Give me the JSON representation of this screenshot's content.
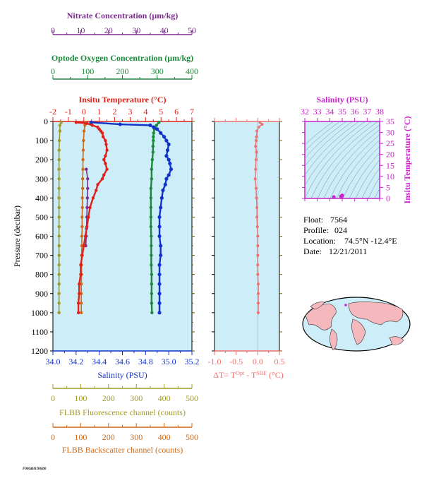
{
  "colors": {
    "nitrate": "#7b2d8e",
    "oxygen": "#1a8a3a",
    "temperature": "#e0201a",
    "salinity": "#1133cc",
    "fluorescence": "#a09a2a",
    "backscatter": "#d06a18",
    "delta": "#f07070",
    "ts_axis": "#cc22cc",
    "panel_bg": "#cdeef8",
    "land": "#f5b8bc",
    "frame": "#7a5a00"
  },
  "float_info": {
    "float_label": "Float:",
    "float_value": "7564",
    "profile_label": "Profile:",
    "profile_value": "024",
    "location_label": "Location:",
    "location_value": "74.5°N  -12.4°E",
    "date_label": "Date:",
    "date_value": "12/21/2011"
  },
  "footer_code": "F0004H1D0400",
  "chart_data": [
    {
      "type": "line",
      "panel": "main",
      "ylabel": "Pressure (decibar)",
      "ylim": [
        1200,
        0
      ],
      "y_ticks": [
        0,
        100,
        200,
        300,
        400,
        500,
        600,
        700,
        800,
        900,
        1000,
        1100,
        1200
      ],
      "grid": false,
      "axes": {
        "nitrate": {
          "label": "Nitrate Concentration (µm/kg)",
          "range": [
            0,
            50
          ],
          "ticks": [
            0,
            10,
            20,
            30,
            40,
            50
          ]
        },
        "oxygen": {
          "label": "Optode Oxygen Concentration (µm/kg)",
          "range": [
            0,
            400
          ],
          "ticks": [
            0,
            100,
            200,
            300,
            400
          ]
        },
        "temperature": {
          "label": "Insitu Temperature (°C)",
          "range": [
            -2,
            7
          ],
          "ticks": [
            -2,
            -1,
            0,
            1,
            2,
            3,
            4,
            5,
            6,
            7
          ]
        },
        "salinity": {
          "label": "Salinity (PSU)",
          "range": [
            34.0,
            35.2
          ],
          "ticks": [
            "34.0",
            "34.2",
            "34.4",
            "34.6",
            "34.8",
            "35.0",
            "35.2"
          ]
        },
        "fluorescence": {
          "label": "FLBB Fluorescence channel (counts)",
          "range": [
            0,
            500
          ],
          "ticks": [
            0,
            100,
            200,
            300,
            400,
            500
          ]
        },
        "backscatter": {
          "label": "FLBB Backscatter channel (counts)",
          "range": [
            0,
            500
          ],
          "ticks": [
            0,
            100,
            200,
            300,
            400,
            500
          ]
        }
      },
      "series": [
        {
          "key": "temperature",
          "pressure": [
            5,
            10,
            20,
            30,
            40,
            50,
            60,
            80,
            100,
            120,
            150,
            180,
            200,
            220,
            250,
            280,
            300,
            330,
            360,
            400,
            450,
            500,
            550,
            600,
            650,
            700,
            750,
            800,
            850,
            900,
            950,
            1000
          ],
          "values": [
            -0.5,
            0.2,
            0.55,
            0.9,
            1.0,
            1.1,
            1.2,
            1.25,
            1.4,
            1.45,
            1.5,
            1.4,
            1.3,
            1.4,
            1.5,
            1.3,
            1.2,
            0.9,
            0.8,
            0.6,
            0.4,
            0.3,
            0.2,
            0.1,
            0.0,
            -0.1,
            -0.2,
            -0.2,
            -0.3,
            -0.3,
            -0.35,
            -0.35
          ]
        },
        {
          "key": "salinity",
          "pressure": [
            5,
            15,
            20,
            30,
            40,
            60,
            80,
            100,
            120,
            150,
            180,
            200,
            220,
            250,
            280,
            300,
            330,
            360,
            400,
            450,
            500,
            550,
            600,
            650,
            700,
            750,
            800,
            850,
            900,
            950,
            1000
          ],
          "values": [
            34.33,
            34.58,
            34.84,
            34.87,
            34.9,
            34.93,
            34.96,
            34.98,
            35.0,
            34.99,
            34.98,
            35.0,
            35.01,
            35.02,
            35.0,
            34.98,
            34.97,
            34.95,
            34.94,
            34.93,
            34.92,
            34.92,
            34.92,
            34.93,
            34.93,
            34.92,
            34.92,
            34.92,
            34.92,
            34.92,
            34.92
          ]
        },
        {
          "key": "oxygen",
          "pressure": [
            5,
            20,
            40,
            60,
            80,
            100,
            130,
            160,
            200,
            250,
            300,
            350,
            400,
            450,
            500,
            550,
            600,
            650,
            700,
            750,
            800,
            850,
            900,
            950,
            1000
          ],
          "values": [
            305,
            298,
            292,
            290,
            289,
            289,
            288,
            288,
            286,
            284,
            284,
            282,
            282,
            282,
            282,
            282,
            283,
            283,
            283,
            283,
            284,
            284,
            284,
            284,
            285
          ]
        },
        {
          "key": "nitrate",
          "pressure": [
            250,
            300,
            350,
            400,
            450,
            500,
            560,
            600,
            650
          ],
          "values": [
            12,
            12.5,
            12.5,
            12.4,
            12.3,
            12.2,
            12.1,
            12,
            11.8
          ]
        },
        {
          "key": "fluorescence",
          "pressure": [
            5,
            20,
            50,
            100,
            150,
            200,
            250,
            300,
            350,
            400,
            450,
            500,
            550,
            600,
            650,
            700,
            750,
            800,
            850,
            900,
            950,
            1000
          ],
          "values": [
            30,
            25,
            25,
            23,
            22,
            22,
            22,
            22,
            22,
            22,
            22,
            22,
            22,
            22,
            22,
            22,
            22,
            22,
            22,
            22,
            22,
            22
          ]
        },
        {
          "key": "backscatter",
          "pressure": [
            5,
            20,
            50,
            100,
            150,
            200,
            250,
            300,
            350,
            400,
            450,
            500,
            550,
            600,
            650,
            700,
            750,
            800,
            850,
            900,
            950,
            1000
          ],
          "values": [
            118,
            115,
            112,
            110,
            109,
            108,
            108,
            107,
            107,
            106,
            106,
            105,
            105,
            104,
            104,
            103,
            103,
            103,
            102,
            102,
            102,
            102
          ]
        }
      ]
    },
    {
      "type": "line",
      "panel": "delta",
      "xlabel": "ΔT= T",
      "xlabel_sup1": "Opt",
      "xlabel_mid": " - T",
      "xlabel_sup2": "SBE",
      "xlabel_end": " (°C)",
      "xlim": [
        -1.0,
        0.5
      ],
      "x_ticks": [
        "-1.0",
        "-0.5",
        "0.0",
        "0.5"
      ],
      "ylim": [
        1200,
        0
      ],
      "series": [
        {
          "key": "delta",
          "pressure": [
            5,
            15,
            30,
            50,
            80,
            100,
            130,
            160,
            200,
            250,
            300,
            350,
            400,
            450,
            500,
            550,
            600,
            650,
            700,
            750,
            800,
            850,
            900,
            950,
            1000
          ],
          "values": [
            0.05,
            0.1,
            0.02,
            -0.02,
            -0.03,
            -0.04,
            -0.05,
            -0.03,
            -0.04,
            -0.05,
            -0.06,
            -0.04,
            -0.03,
            -0.02,
            -0.02,
            -0.01,
            0.0,
            0.0,
            0.0,
            0.0,
            0.0,
            0.01,
            0.01,
            0.01,
            0.01
          ]
        }
      ]
    },
    {
      "type": "scatter",
      "panel": "ts",
      "xlabel": "Salinity (PSU)",
      "ylabel": "Insitu Temperature (°C)",
      "xlim": [
        32,
        38
      ],
      "ylim": [
        0,
        35
      ],
      "x_ticks": [
        32,
        33,
        34,
        35,
        36,
        37,
        38
      ],
      "y_ticks": [
        0,
        5,
        10,
        15,
        20,
        25,
        30,
        35
      ],
      "points": [
        [
          34.92,
          -0.3
        ],
        [
          34.95,
          0.8
        ],
        [
          35.0,
          1.4
        ],
        [
          34.9,
          1.0
        ],
        [
          34.33,
          -0.5
        ]
      ]
    }
  ]
}
